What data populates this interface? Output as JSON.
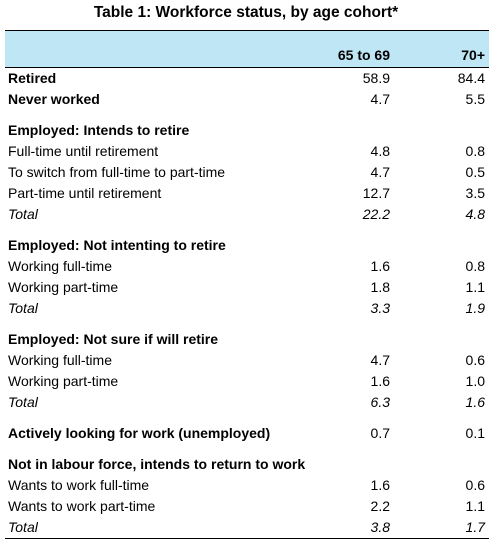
{
  "title": "Table 1: Workforce status, by age cohort*",
  "columns": [
    "65 to 69",
    "70+"
  ],
  "rows": [
    {
      "label": "Retired",
      "v1": "58.9",
      "v2": "84.4",
      "style": "bold"
    },
    {
      "label": "Never worked",
      "v1": "4.7",
      "v2": "5.5",
      "style": "bold"
    },
    {
      "label": "Employed: Intends to retire",
      "v1": "",
      "v2": "",
      "style": "bold",
      "gap": true
    },
    {
      "label": "Full-time until retirement",
      "v1": "4.8",
      "v2": "0.8",
      "style": ""
    },
    {
      "label": "To switch from full-time to part-time",
      "v1": "4.7",
      "v2": "0.5",
      "style": ""
    },
    {
      "label": "Part-time until retirement",
      "v1": "12.7",
      "v2": "3.5",
      "style": ""
    },
    {
      "label": "Total",
      "v1": "22.2",
      "v2": "4.8",
      "style": "ital"
    },
    {
      "label": "Employed: Not intenting to retire",
      "v1": "",
      "v2": "",
      "style": "bold",
      "gap": true
    },
    {
      "label": "Working full-time",
      "v1": "1.6",
      "v2": "0.8",
      "style": ""
    },
    {
      "label": "Working part-time",
      "v1": "1.8",
      "v2": "1.1",
      "style": ""
    },
    {
      "label": "Total",
      "v1": "3.3",
      "v2": "1.9",
      "style": "ital"
    },
    {
      "label": "Employed: Not sure if will retire",
      "v1": "",
      "v2": "",
      "style": "bold",
      "gap": true
    },
    {
      "label": "Working full-time",
      "v1": "4.7",
      "v2": "0.6",
      "style": ""
    },
    {
      "label": "Working part-time",
      "v1": "1.6",
      "v2": "1.0",
      "style": ""
    },
    {
      "label": "Total",
      "v1": "6.3",
      "v2": "1.6",
      "style": "ital"
    },
    {
      "label": "Actively looking for work (unemployed)",
      "v1": "0.7",
      "v2": "0.1",
      "style": "bold",
      "gap": true,
      "valuesPlain": true
    },
    {
      "label": "Not in labour force, intends to return to work",
      "v1": "",
      "v2": "",
      "style": "bold",
      "gap": true
    },
    {
      "label": "Wants to work full-time",
      "v1": "1.6",
      "v2": "0.6",
      "style": ""
    },
    {
      "label": "Wants to work part-time",
      "v1": "2.2",
      "v2": "1.1",
      "style": ""
    },
    {
      "label": "Total",
      "v1": "3.8",
      "v2": "1.7",
      "style": "ital"
    }
  ],
  "colors": {
    "header_bg": "#bfe6f5",
    "rule": "#000000"
  }
}
